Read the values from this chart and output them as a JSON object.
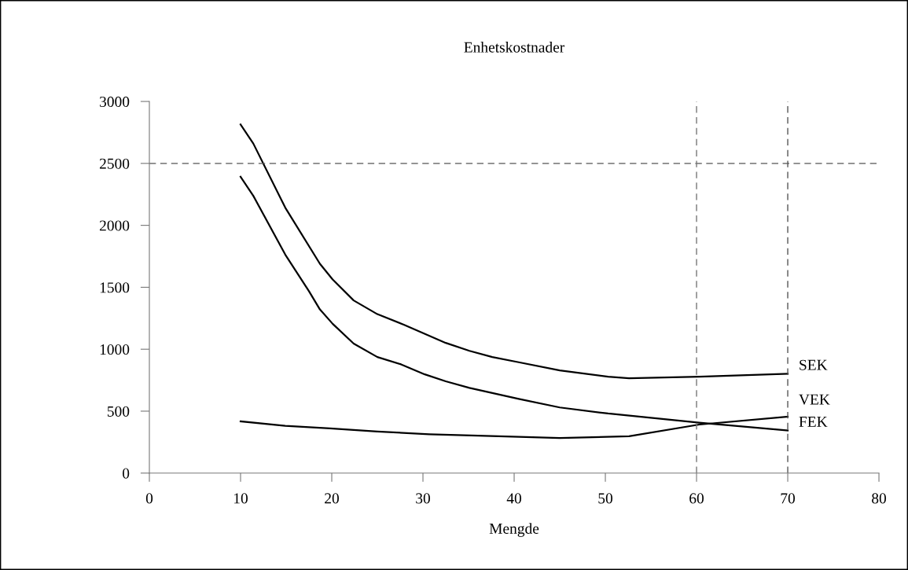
{
  "chart_data": {
    "type": "line",
    "title": "Enhetskostnader",
    "xlabel": "Mengde",
    "xlim": [
      0,
      80
    ],
    "xticks": [
      0,
      10,
      20,
      30,
      40,
      50,
      60,
      70,
      80
    ],
    "ylim": [
      0,
      3000
    ],
    "yticks": [
      0,
      500,
      1000,
      1500,
      2000,
      2500,
      3000
    ],
    "grid": false,
    "legend": false,
    "marker": "none",
    "line_style": "solid",
    "series": [
      {
        "name": "SEK",
        "color": "#000000",
        "x": [
          10,
          11.4,
          14.9,
          18.7,
          20.1,
          22.4,
          25,
          27.9,
          32.5,
          35.1,
          37.6,
          40.5,
          45,
          50.3,
          52.6,
          60.3,
          70
        ],
        "values": [
          2814,
          2660,
          2143,
          1690,
          1563,
          1394,
          1283,
          1198,
          1051,
          987,
          937,
          895,
          829,
          778,
          766,
          778,
          802
        ]
      },
      {
        "name": "VEK",
        "color": "#000000",
        "x": [
          10,
          14.9,
          19.8,
          25,
          30.7,
          35.3,
          45,
          52.6,
          60.3,
          70
        ],
        "values": [
          418,
          382,
          361,
          335,
          314,
          304,
          283,
          298,
          392,
          456
        ]
      },
      {
        "name": "FEK",
        "color": "#000000",
        "x": [
          10,
          11.4,
          14.9,
          17.5,
          18.7,
          20.1,
          22.4,
          25,
          27.6,
          30.2,
          32.5,
          35.1,
          40.5,
          45,
          50.3,
          60.3,
          70
        ],
        "values": [
          2392,
          2238,
          1764,
          1468,
          1321,
          1205,
          1046,
          937,
          878,
          797,
          741,
          688,
          599,
          530,
          481,
          407,
          344
        ]
      }
    ],
    "ref_lines": [
      {
        "axis": "y",
        "value": 2500,
        "color": "#555555",
        "line_style": "dashed"
      },
      {
        "axis": "x",
        "value": 60,
        "color": "#777777",
        "line_style": "dashed"
      },
      {
        "axis": "x",
        "value": 70,
        "color": "#555555",
        "line_style": "dashed"
      }
    ]
  }
}
